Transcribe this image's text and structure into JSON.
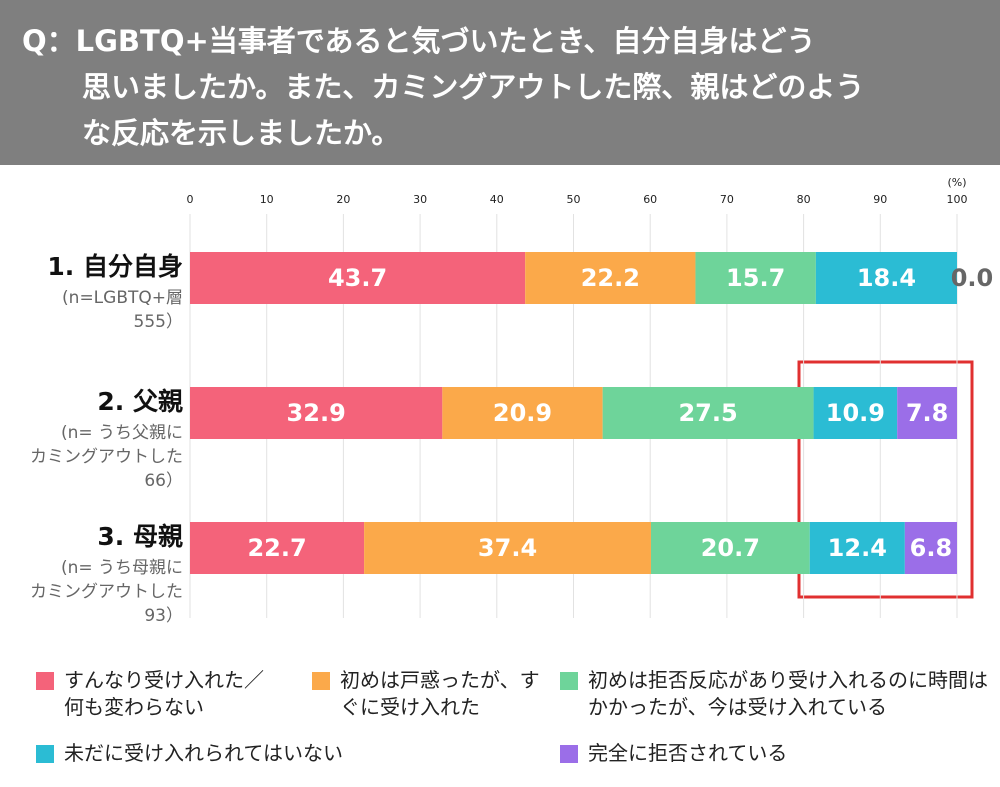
{
  "chart_data": {
    "type": "stacked_bar_horizontal",
    "title_lines": [
      "Q：LGBTQ+当事者であると気づいたとき、自分自身はどう",
      "思いましたか。また、カミングアウトした際、親はどのよう",
      "な反応を示しましたか。"
    ],
    "categories": [
      "1. 自分自身",
      "2. 父親",
      "3. 母親"
    ],
    "category_notes": [
      [
        "(n=LGBTQ+層",
        "555）"
      ],
      [
        "(n= うち父親に",
        "カミングアウトした",
        "66）"
      ],
      [
        "(n= うち母親に",
        "カミングアウトした",
        "93）"
      ]
    ],
    "x_unit": "(%)",
    "xlim": [
      0,
      100
    ],
    "xticks": [
      0,
      10,
      20,
      30,
      40,
      50,
      60,
      70,
      80,
      90,
      100
    ],
    "grid": true,
    "series": [
      {
        "name": "すんなり受け入れた／何も変わらない",
        "color": "#f4637a",
        "values": [
          43.7,
          32.9,
          22.7
        ]
      },
      {
        "name": "初めは戸惑ったが、すぐに受け入れた",
        "color": "#fba94a",
        "values": [
          22.2,
          20.9,
          37.4
        ]
      },
      {
        "name": "初めは拒否反応があり受け入れるのに時間はかかったが、今は受け入れている",
        "color": "#6ed49a",
        "values": [
          15.7,
          27.5,
          20.7
        ]
      },
      {
        "name": "未だに受け入れられてはいない",
        "color": "#2bbcd4",
        "values": [
          18.4,
          10.9,
          12.4
        ]
      },
      {
        "name": "完全に拒否されている",
        "color": "#9b6ee8",
        "values": [
          0,
          7.8,
          6.8
        ],
        "value_labels": [
          "0.0",
          "7.8",
          "6.8"
        ]
      }
    ]
  }
}
